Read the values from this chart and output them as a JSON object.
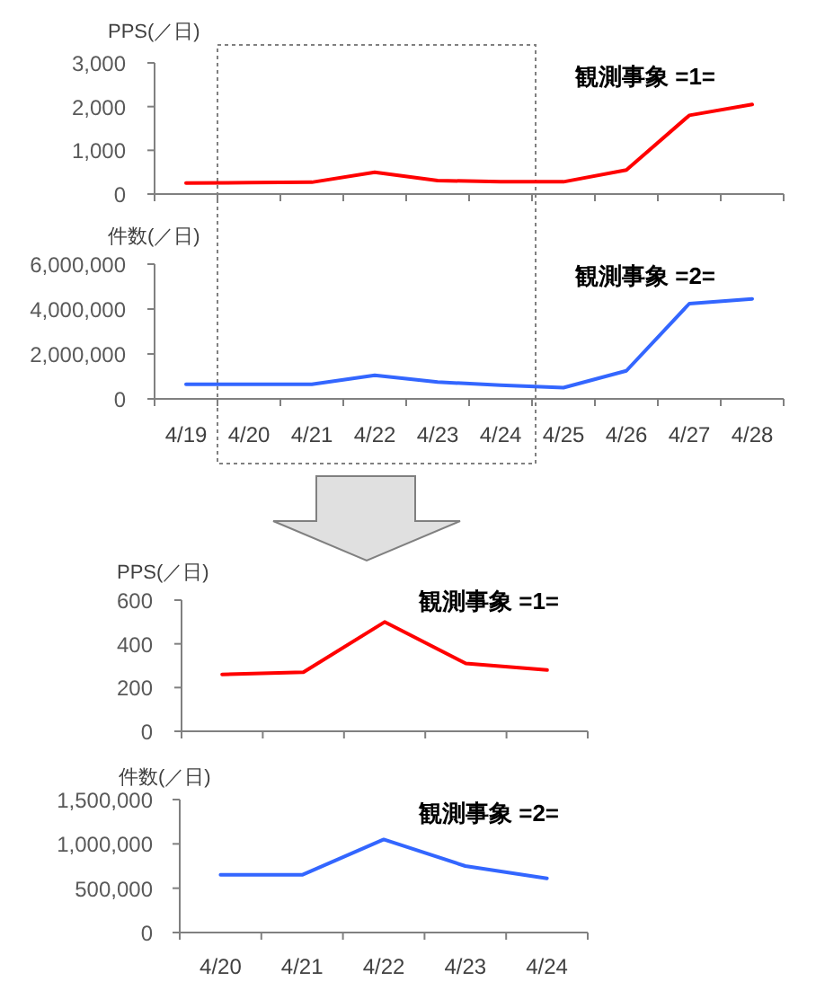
{
  "chart_data": [
    {
      "type": "line",
      "ylabel": "PPS(／日)",
      "annotations": [
        "観測事象 =1="
      ],
      "tick_labels": "y",
      "categories": [
        null,
        null,
        null,
        null,
        null,
        null,
        null,
        null,
        null,
        null
      ],
      "series": [
        {
          "color": "#ff0000",
          "values": [
            250,
            260,
            270,
            500,
            310,
            280,
            280,
            550,
            1800,
            2050
          ]
        }
      ],
      "ylim": [
        0,
        3000
      ],
      "yticks": [
        0,
        {
          "value": 1000,
          "label": "1,000"
        },
        {
          "value": 2000,
          "label": "2,000"
        },
        {
          "value": 3000,
          "label": "3,000"
        }
      ]
    },
    {
      "type": "line",
      "ylabel": "件数(／日)",
      "annotations": [
        "観測事象 =2="
      ],
      "categories": [
        "4/19",
        "4/20",
        "4/21",
        "4/22",
        "4/23",
        "4/24",
        "4/25",
        "4/26",
        "4/27",
        "4/28"
      ],
      "series": [
        {
          "color": "#3366ff",
          "values": [
            650000,
            650000,
            650000,
            1050000,
            750000,
            610000,
            500000,
            1250000,
            4240000,
            4450000
          ]
        }
      ],
      "ylim": [
        0,
        6000000
      ],
      "yticks": [
        0,
        {
          "value": 2000000,
          "label": "2,000,000"
        },
        {
          "value": 4000000,
          "label": "4,000,000"
        },
        {
          "value": 6000000,
          "label": "6,000,000"
        }
      ]
    },
    {
      "type": "line",
      "ylabel": "PPS(／日)",
      "annotations": [
        "観測事象 =1="
      ],
      "tick_labels": "y",
      "categories": [
        null,
        null,
        null,
        null,
        null
      ],
      "series": [
        {
          "color": "#ff0000",
          "values": [
            260,
            270,
            500,
            310,
            280
          ]
        }
      ],
      "ylim": [
        0,
        600
      ],
      "yticks": [
        0,
        200,
        400,
        600
      ]
    },
    {
      "type": "line",
      "ylabel": "件数(／日)",
      "annotations": [
        "観測事象 =2="
      ],
      "categories": [
        "4/20",
        "4/21",
        "4/22",
        "4/23",
        "4/24"
      ],
      "series": [
        {
          "color": "#3366ff",
          "values": [
            650000,
            650000,
            1050000,
            750000,
            610000
          ]
        }
      ],
      "ylim": [
        0,
        1500000
      ],
      "yticks": [
        0,
        {
          "value": 500000,
          "label": "500,000"
        },
        {
          "value": 1000000,
          "label": "1,000,000"
        },
        {
          "value": 1500000,
          "label": "1,500,000"
        }
      ]
    }
  ]
}
